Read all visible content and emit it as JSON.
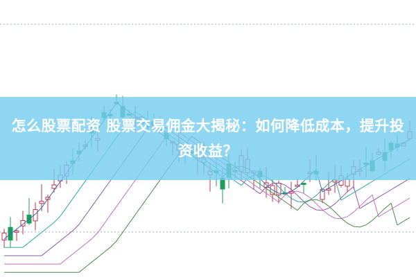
{
  "article": {
    "title": "怎么股票配资 股票交易佣金大揭秘：如何降低成本，提升投资收益？"
  },
  "colors": {
    "banner": "#76cdf0",
    "up_candle": "#c0304a",
    "down_candle": "#1e9e5a",
    "ma_lines": [
      "#3a6fb0",
      "#2aa8a0",
      "#8a5aa8",
      "#c96fc0",
      "#4a8a4a"
    ]
  }
}
